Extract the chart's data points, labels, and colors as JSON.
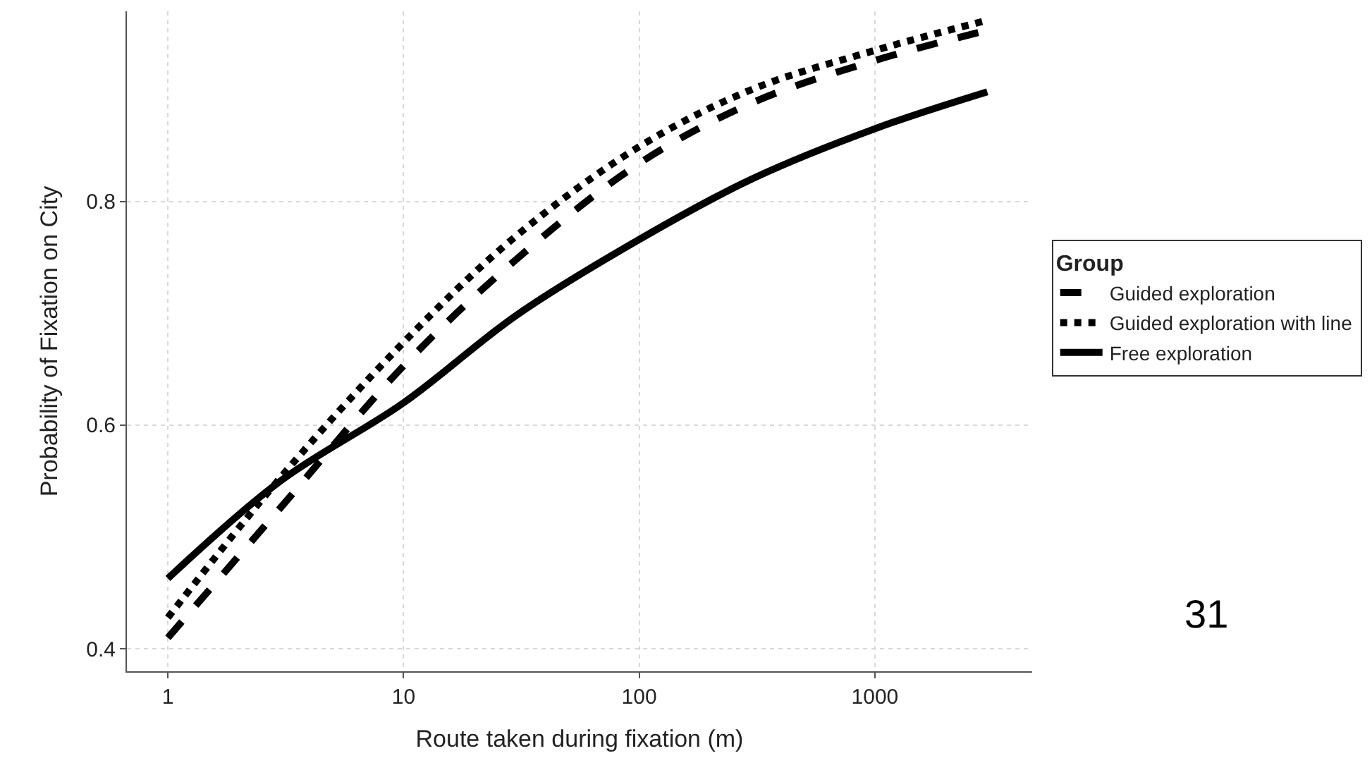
{
  "chart_data": {
    "type": "line",
    "xlabel": "Route taken during fixation (m)",
    "ylabel": "Probability of Fixation on City",
    "legend_title": "Group",
    "log": "x",
    "grid": true,
    "legend": "right",
    "marker": "none",
    "x": [
      1,
      3,
      10,
      30,
      100,
      300,
      1000,
      3000
    ],
    "series": [
      {
        "name": "Guided exploration",
        "color": "#000000",
        "line_style": "dashed",
        "values": [
          0.41,
          0.526,
          0.653,
          0.748,
          0.834,
          0.888,
          0.926,
          0.953
        ]
      },
      {
        "name": "Guided exploration with line",
        "color": "#000000",
        "line_style": "dotted",
        "values": [
          0.428,
          0.553,
          0.674,
          0.769,
          0.849,
          0.9,
          0.935,
          0.962
        ]
      },
      {
        "name": "Free exploration",
        "color": "#000000",
        "line_style": "solid",
        "values": [
          0.463,
          0.55,
          0.62,
          0.698,
          0.766,
          0.82,
          0.865,
          0.898
        ]
      }
    ],
    "xlim": [
      0.67,
      4650
    ],
    "xticks": [
      1,
      10,
      100,
      1000
    ],
    "ylim": [
      0.38,
      0.97
    ],
    "yticks": [
      0.4,
      0.6,
      0.8
    ],
    "annotations": [
      "31"
    ]
  }
}
